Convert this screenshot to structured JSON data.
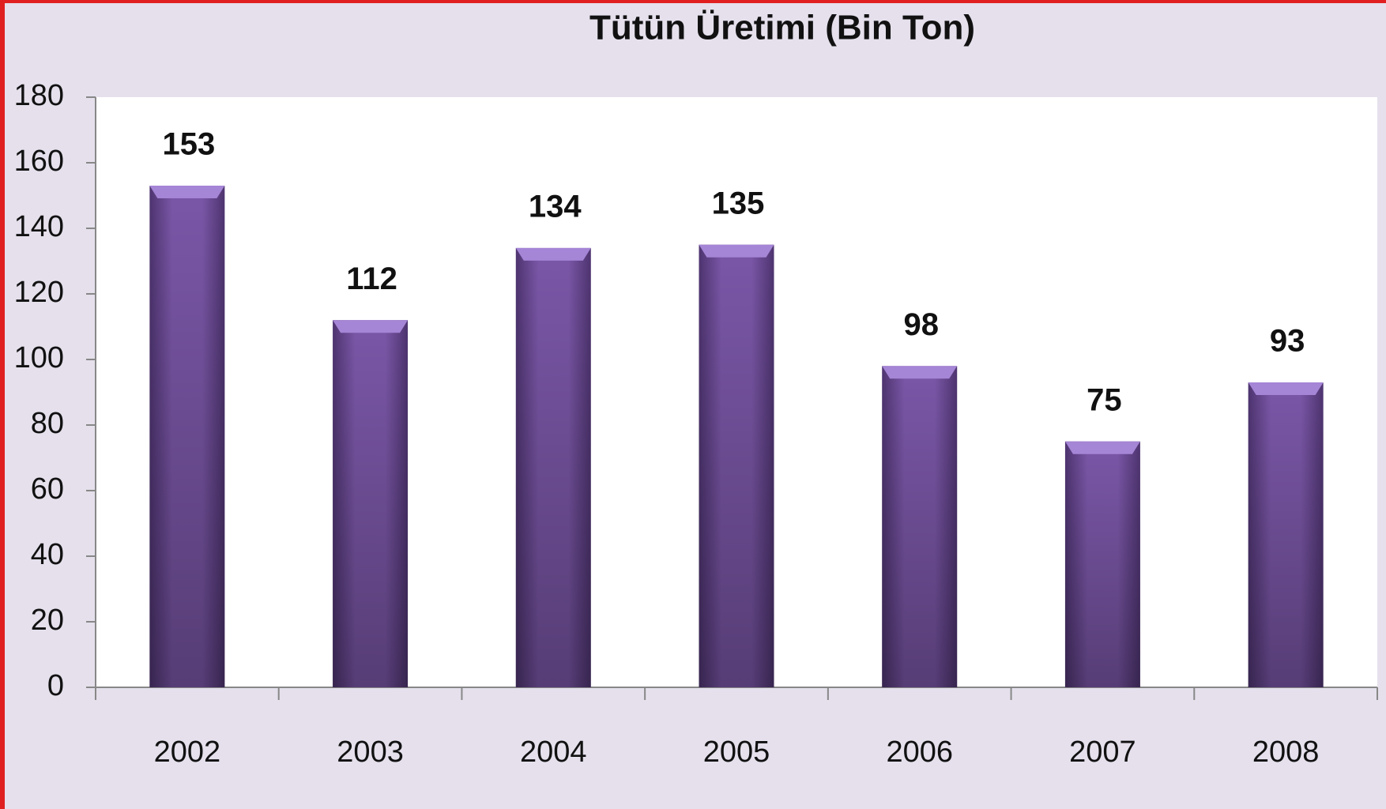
{
  "chart_data": {
    "type": "bar",
    "title": "Tütün Üretimi (Bin Ton)",
    "categories": [
      "2002",
      "2003",
      "2004",
      "2005",
      "2006",
      "2007",
      "2008"
    ],
    "values": [
      153,
      112,
      134,
      135,
      98,
      75,
      93
    ],
    "color": "#7b57a8",
    "ylim": [
      0,
      180
    ],
    "yticks": [
      0,
      20,
      40,
      60,
      80,
      100,
      120,
      140,
      160,
      180
    ],
    "grid": false
  }
}
